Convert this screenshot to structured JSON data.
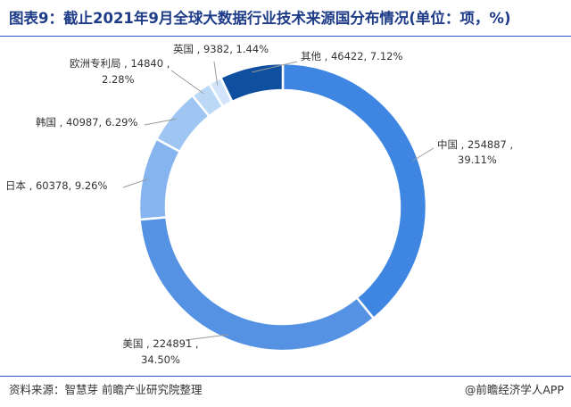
{
  "header": {
    "title": "图表9：截止2021年9月全球大数据行业技术来源国分布情况(单位：项，%)"
  },
  "footer": {
    "source": "资料来源：智慧芽 前瞻产业研究院整理",
    "brand": "@前瞻经济学人APP"
  },
  "chart_data": {
    "type": "pie",
    "donut": true,
    "title": "图表9：截止2021年9月全球大数据行业技术来源国分布情况(单位：项，%)",
    "unit": "项，%",
    "start_angle_deg": 0,
    "direction": "clockwise",
    "slices": [
      {
        "name": "中国",
        "value": 254887,
        "percent": "39.11%",
        "color": "#3f86e2"
      },
      {
        "name": "美国",
        "value": 224891,
        "percent": "34.50%",
        "color": "#5592e4"
      },
      {
        "name": "日本",
        "value": 60378,
        "percent": "9.26%",
        "color": "#86b4ee"
      },
      {
        "name": "韩国",
        "value": 40987,
        "percent": "6.29%",
        "color": "#9fc5f3"
      },
      {
        "name": "欧洲专利局",
        "value": 14840,
        "percent": "2.28%",
        "color": "#bcd8f7"
      },
      {
        "name": "英国",
        "value": 9382,
        "percent": "1.44%",
        "color": "#d2e5fa"
      },
      {
        "name": "其他",
        "value": 46422,
        "percent": "7.12%",
        "color": "#0f4fa0"
      }
    ]
  }
}
